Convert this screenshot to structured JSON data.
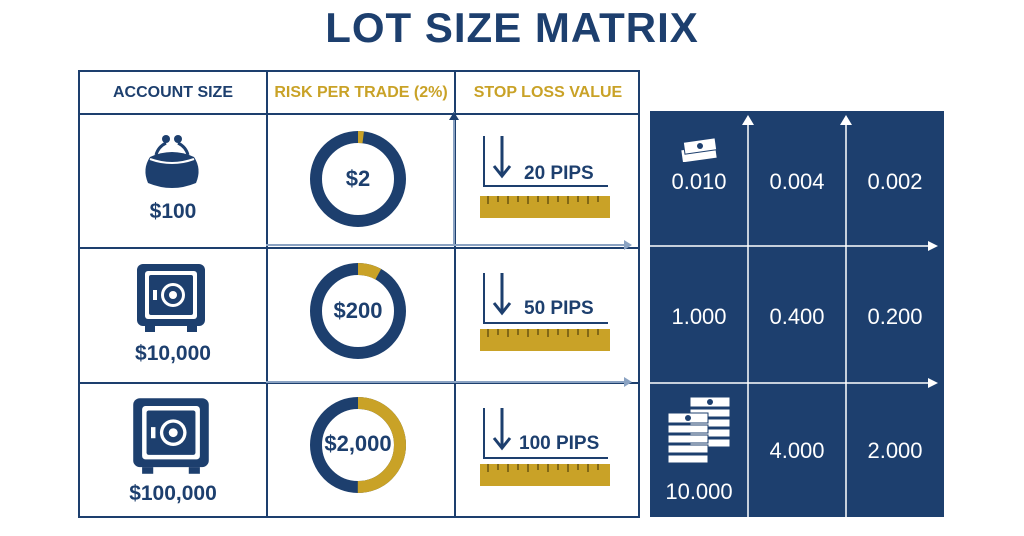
{
  "title": "LOT SIZE MATRIX",
  "headers": {
    "account_size": "ACCOUNT SIZE",
    "risk_per_trade": "RISK PER TRADE (2%)",
    "stop_loss_value": "STOP LOSS VALUE"
  },
  "rows": [
    {
      "account": "$100",
      "account_icon": "purse-icon",
      "risk": "$2",
      "risk_fraction": 0.02,
      "stop_loss": "20 PIPS"
    },
    {
      "account": "$10,000",
      "account_icon": "safe-icon",
      "risk": "$200",
      "risk_fraction": 0.08,
      "stop_loss": "50 PIPS"
    },
    {
      "account": "$100,000",
      "account_icon": "safe-icon",
      "risk": "$2,000",
      "risk_fraction": 0.5,
      "stop_loss": "100 PIPS"
    }
  ],
  "matrix": [
    [
      "0.010",
      "0.004",
      "0.002"
    ],
    [
      "1.000",
      "0.400",
      "0.200"
    ],
    [
      "10.000",
      "4.000",
      "2.000"
    ]
  ],
  "colors": {
    "navy": "#1d3f6e",
    "gold": "#c9a227",
    "white": "#ffffff"
  }
}
